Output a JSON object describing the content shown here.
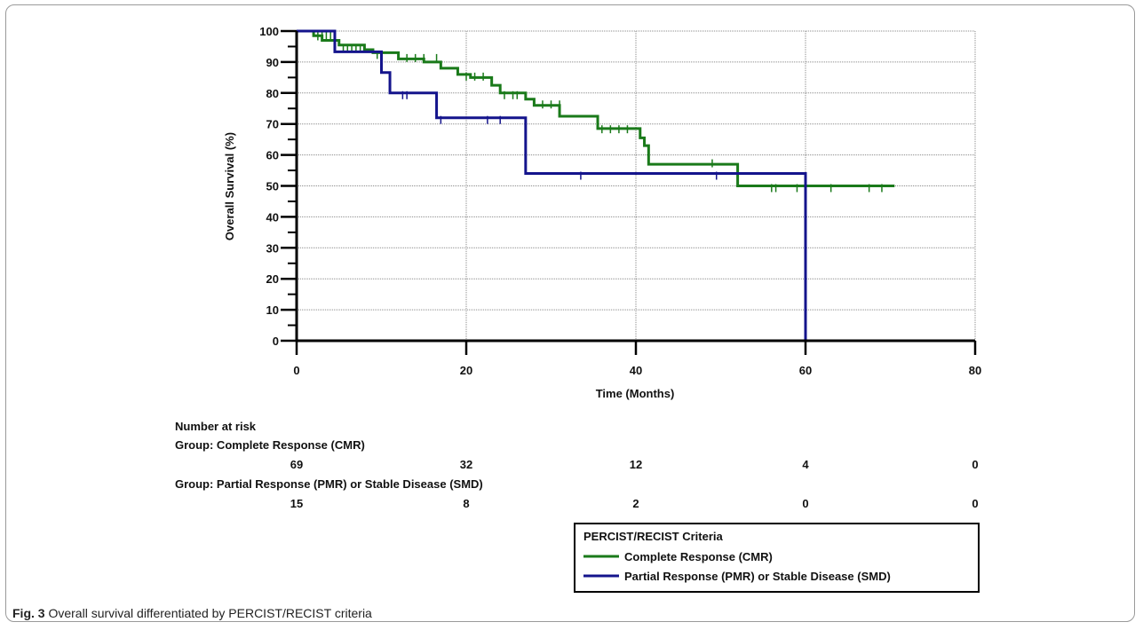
{
  "chart_data": {
    "type": "line",
    "ylabel": "Overall Survival (%)",
    "xlabel": "Time (Months)",
    "xlim": [
      0,
      80
    ],
    "ylim": [
      0,
      100
    ],
    "xticks": [
      0,
      20,
      40,
      60,
      80
    ],
    "yticks": [
      0,
      10,
      20,
      30,
      40,
      50,
      60,
      70,
      80,
      90,
      100
    ],
    "grid": true,
    "series": [
      {
        "name": "Complete Response (CMR)",
        "color": "#1a7a1a",
        "steps": [
          [
            0,
            100
          ],
          [
            2,
            98.5
          ],
          [
            3,
            97
          ],
          [
            5,
            95.5
          ],
          [
            8,
            94
          ],
          [
            9,
            93
          ],
          [
            12,
            91
          ],
          [
            15,
            90
          ],
          [
            17,
            88
          ],
          [
            19,
            86
          ],
          [
            20.5,
            85
          ],
          [
            23,
            82.5
          ],
          [
            24,
            80
          ],
          [
            27,
            78
          ],
          [
            28,
            76
          ],
          [
            31,
            72.5
          ],
          [
            35.5,
            68.5
          ],
          [
            40.5,
            65.5
          ],
          [
            41,
            63
          ],
          [
            41.5,
            57
          ],
          [
            52,
            50
          ],
          [
            70.5,
            50
          ]
        ],
        "censored": [
          [
            2.5,
            97
          ],
          [
            3,
            97
          ],
          [
            3.5,
            97
          ],
          [
            4,
            97
          ],
          [
            5.5,
            93
          ],
          [
            6,
            93
          ],
          [
            6.5,
            93
          ],
          [
            7,
            93
          ],
          [
            7.5,
            93
          ],
          [
            9.5,
            91
          ],
          [
            13,
            90
          ],
          [
            14,
            90
          ],
          [
            15,
            90
          ],
          [
            16.5,
            90
          ],
          [
            20,
            84
          ],
          [
            21,
            84
          ],
          [
            22,
            84
          ],
          [
            24.5,
            78
          ],
          [
            25.5,
            78
          ],
          [
            26,
            78
          ],
          [
            29,
            75
          ],
          [
            30,
            75
          ],
          [
            31,
            75
          ],
          [
            36,
            67
          ],
          [
            37,
            67
          ],
          [
            38,
            67
          ],
          [
            39,
            67
          ],
          [
            49,
            56
          ],
          [
            56,
            48
          ],
          [
            56.5,
            48
          ],
          [
            59,
            48
          ],
          [
            63,
            48
          ],
          [
            67.5,
            48
          ],
          [
            69,
            48
          ]
        ]
      },
      {
        "name": "Partial Response (PMR) or Stable Disease (SMD)",
        "color": "#14148c",
        "steps": [
          [
            0,
            100
          ],
          [
            4.5,
            93.3
          ],
          [
            10,
            86.6
          ],
          [
            11,
            80
          ],
          [
            16.5,
            72
          ],
          [
            27,
            54
          ],
          [
            60,
            54
          ],
          [
            60,
            0
          ]
        ],
        "censored": [
          [
            12.5,
            78
          ],
          [
            13,
            78
          ],
          [
            17,
            70
          ],
          [
            22.5,
            70
          ],
          [
            24,
            70
          ],
          [
            33.5,
            52
          ],
          [
            49.5,
            52
          ]
        ]
      }
    ],
    "risk_table": {
      "title": "Number at risk",
      "groups": [
        {
          "label": "Group: Complete Response (CMR)",
          "values": [
            69,
            32,
            12,
            4,
            0
          ]
        },
        {
          "label": "Group: Partial Response (PMR) or Stable Disease (SMD)",
          "values": [
            15,
            8,
            2,
            0,
            0
          ]
        }
      ]
    },
    "legend": {
      "title": "PERCIST/RECIST Criteria",
      "placement": "bottom-right"
    }
  },
  "caption": {
    "label": "Fig. 3",
    "text": "Overall survival differentiated by PERCIST/RECIST criteria"
  }
}
